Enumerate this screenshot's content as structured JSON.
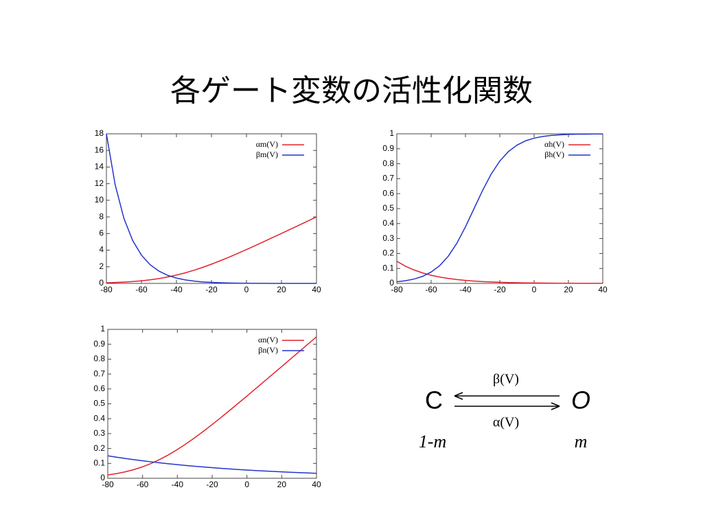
{
  "title": "各ゲート変数の活性化関数",
  "chart_data": [
    {
      "type": "line",
      "legend": "upper right",
      "x": [
        -80,
        -75,
        -70,
        -65,
        -60,
        -55,
        -50,
        -45,
        -40,
        -35,
        -30,
        -25,
        -20,
        -15,
        -10,
        -5,
        0,
        5,
        10,
        15,
        20,
        25,
        30,
        35,
        40
      ],
      "series": [
        {
          "name": "αm(V)",
          "color": "#e4202a",
          "values": [
            0.075,
            0.109,
            0.157,
            0.224,
            0.313,
            0.431,
            0.582,
            0.771,
            1.0,
            1.271,
            1.582,
            1.931,
            2.313,
            2.724,
            3.157,
            3.609,
            4.074,
            4.551,
            5.034,
            5.523,
            6.015,
            6.51,
            7.006,
            7.5,
            8.0
          ]
        },
        {
          "name": "βm(V)",
          "color": "#2233cc",
          "values": [
            18,
            11.87,
            7.82,
            5.16,
            3.4,
            2.24,
            1.48,
            0.97,
            0.64,
            0.42,
            0.28,
            0.18,
            0.12,
            0.08,
            0.05,
            0.03,
            0.02,
            0.01,
            0.01,
            0,
            0,
            0,
            0,
            0,
            0
          ]
        }
      ],
      "xlim": [
        -80,
        40
      ],
      "ylim": [
        0,
        18
      ],
      "xticks": [
        -80,
        -60,
        -40,
        -20,
        0,
        20,
        40
      ],
      "yticks": [
        0,
        2,
        4,
        6,
        8,
        10,
        12,
        14,
        16,
        18
      ]
    },
    {
      "type": "line",
      "legend": "upper right",
      "x": [
        -80,
        -75,
        -70,
        -65,
        -60,
        -55,
        -50,
        -45,
        -40,
        -35,
        -30,
        -25,
        -20,
        -15,
        -10,
        -5,
        0,
        5,
        10,
        15,
        20,
        25,
        30,
        35,
        40
      ],
      "series": [
        {
          "name": "αh(V)",
          "color": "#e4202a",
          "values": [
            0.148,
            0.115,
            0.09,
            0.07,
            0.0545,
            0.0425,
            0.0331,
            0.0258,
            0.0201,
            0.0156,
            0.0122,
            0.0095,
            0.0074,
            0.0058,
            0.0045,
            0.0035,
            0.0027,
            0.0021,
            0.0016,
            0.0013,
            0.001,
            0.0008,
            0.0006,
            0.0005,
            0.0004
          ]
        },
        {
          "name": "βh(V)",
          "color": "#2233cc",
          "values": [
            0.011,
            0.018,
            0.029,
            0.047,
            0.076,
            0.119,
            0.182,
            0.269,
            0.378,
            0.5,
            0.622,
            0.731,
            0.818,
            0.881,
            0.924,
            0.953,
            0.971,
            0.982,
            0.989,
            0.993,
            0.996,
            0.998,
            0.998,
            0.999,
            0.999
          ]
        }
      ],
      "xlim": [
        -80,
        40
      ],
      "ylim": [
        0,
        1
      ],
      "xticks": [
        -80,
        -60,
        -40,
        -20,
        0,
        20,
        40
      ],
      "yticks": [
        0,
        0.1,
        0.2,
        0.3,
        0.4,
        0.5,
        0.6,
        0.7,
        0.8,
        0.9,
        1
      ]
    },
    {
      "type": "line",
      "legend": "upper right",
      "x": [
        -80,
        -75,
        -70,
        -65,
        -60,
        -55,
        -50,
        -45,
        -40,
        -35,
        -30,
        -25,
        -20,
        -15,
        -10,
        -5,
        0,
        5,
        10,
        15,
        20,
        25,
        30,
        35,
        40
      ],
      "series": [
        {
          "name": "αn(V)",
          "color": "#e4202a",
          "values": [
            0.0224,
            0.0313,
            0.0431,
            0.0582,
            0.0771,
            0.1,
            0.1271,
            0.1582,
            0.1931,
            0.2313,
            0.2724,
            0.3157,
            0.3609,
            0.4075,
            0.4551,
            0.5034,
            0.5523,
            0.6015,
            0.651,
            0.7006,
            0.7503,
            0.8002,
            0.85,
            0.9,
            0.95
          ]
        },
        {
          "name": "βn(V)",
          "color": "#2233cc",
          "values": [
            0.1508,
            0.1416,
            0.133,
            0.125,
            0.1174,
            0.1103,
            0.1036,
            0.0974,
            0.0915,
            0.0859,
            0.0807,
            0.0758,
            0.0712,
            0.0669,
            0.0629,
            0.059,
            0.0555,
            0.0521,
            0.049,
            0.046,
            0.0432,
            0.0406,
            0.0381,
            0.0358,
            0.0336
          ]
        }
      ],
      "xlim": [
        -80,
        40
      ],
      "ylim": [
        0,
        1
      ],
      "xticks": [
        -80,
        -60,
        -40,
        -20,
        0,
        20,
        40
      ],
      "yticks": [
        0,
        0.1,
        0.2,
        0.3,
        0.4,
        0.5,
        0.6,
        0.7,
        0.8,
        0.9,
        1
      ]
    }
  ],
  "diagram": {
    "left_state": "C",
    "right_state": "O",
    "top_label": "β(V)",
    "bottom_label": "α(V)",
    "left_sub": "1-m",
    "right_sub": "m"
  }
}
